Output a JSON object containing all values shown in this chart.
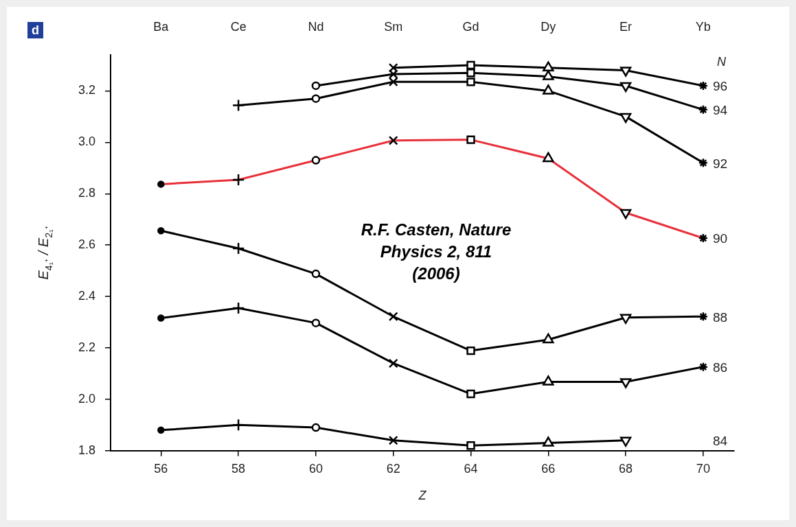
{
  "chart_data": {
    "type": "line",
    "title": "d",
    "xlabel": "Z",
    "ylabel": "E$_{4₁⁺}$ / E$_{2₁⁺}$",
    "legend_title": "N",
    "x": [
      56,
      58,
      60,
      62,
      64,
      66,
      68,
      70
    ],
    "marker": [
      "circle",
      "plus",
      "circle-open",
      "cross",
      "square",
      "triangle",
      "triangle-down",
      "star"
    ],
    "series": [
      {
        "name": "96",
        "color": "#000000",
        "values": [
          null,
          null,
          null,
          3.29,
          3.3,
          3.29,
          3.28,
          3.22
        ]
      },
      {
        "name": "94",
        "color": "#000000",
        "values": [
          null,
          null,
          3.22,
          3.265,
          3.27,
          3.256,
          3.22,
          3.127
        ]
      },
      {
        "name": "92",
        "color": "#000000",
        "values": [
          null,
          3.144,
          3.17,
          3.235,
          3.235,
          3.2,
          3.1,
          2.92
        ]
      },
      {
        "name": "90",
        "color": "#e8303a",
        "values": [
          2.837,
          2.854,
          2.93,
          3.007,
          3.01,
          2.937,
          2.726,
          2.627
        ]
      },
      {
        "name": "88",
        "color": "#000000",
        "values": [
          2.656,
          2.587,
          2.488,
          2.322,
          2.189,
          2.232,
          2.318,
          2.322
        ]
      },
      {
        "name": "86",
        "color": "#000000",
        "values": [
          2.316,
          2.355,
          2.297,
          2.14,
          2.021,
          2.068,
          2.068,
          2.126
        ]
      },
      {
        "name": "84",
        "color": "#000000",
        "values": [
          1.88,
          1.9,
          1.89,
          1.84,
          1.82,
          1.83,
          1.84,
          null
        ]
      }
    ],
    "xlim": [
      54.7,
      70.8
    ],
    "ylim": [
      1.8,
      3.34
    ],
    "xticks": [
      56,
      58,
      60,
      62,
      64,
      66,
      68,
      70
    ],
    "yticks": [
      1.8,
      {
        "value": 2,
        "label": "2.0"
      },
      2.2,
      2.4,
      2.6,
      2.8,
      {
        "value": 3,
        "label": "3.0"
      },
      3.2
    ],
    "grid": false,
    "legend": false,
    "annotations": [
      "R.F. Casten, Nature Physics 2, 811 (2006)",
      "Ba",
      "Ce",
      "Nd",
      "Sm",
      "Gd",
      "Dy",
      "Er",
      "Yb"
    ]
  }
}
